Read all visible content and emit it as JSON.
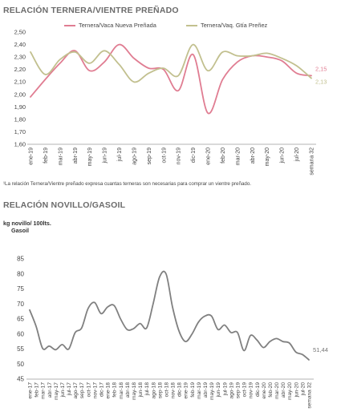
{
  "chart1_title": "RELACIÓN TERNERA/VIENTRE PREÑADO",
  "chart2_title": "RELACIÓN NOVILLO/GASOIL",
  "footnote": "¹La relación Ternera/Vientre preñado expresa cuantas terneras son necesarias para comprar un vientre preñado.",
  "chart2_ylabel_line1": "kg novillo/ 100lts.",
  "chart2_ylabel_line2": "Gasoil",
  "colors": {
    "series_pink": "#e07d92",
    "series_khaki": "#c2c08f",
    "series_grey": "#808080"
  },
  "chart_data": [
    {
      "type": "line",
      "title": "RELACIÓN TERNERA/VIENTRE PREÑADO",
      "categories": [
        "ene-19",
        "feb-19",
        "mar-19",
        "abr-19",
        "may-19",
        "jun-19",
        "jul-19",
        "ago-19",
        "sep-19",
        "oct-19",
        "nov-19",
        "dic-19",
        "ene-20",
        "feb-20",
        "mar-20",
        "abr-20",
        "may-20",
        "jun-20",
        "jul-20",
        "semana 32"
      ],
      "ylim": [
        1.6,
        2.5
      ],
      "yticks": [
        "1,60",
        "1,70",
        "1,80",
        "1,90",
        "2,00",
        "2,10",
        "2,20",
        "2,30",
        "2,40",
        "2,50"
      ],
      "legend_position": "top",
      "grid": false,
      "series": [
        {
          "name": "Ternera/Vaca Nueva Preñada",
          "color": "#e07d92",
          "values": [
            1.98,
            2.12,
            2.25,
            2.35,
            2.19,
            2.26,
            2.4,
            2.29,
            2.21,
            2.2,
            2.03,
            2.32,
            1.85,
            2.12,
            2.26,
            2.31,
            2.3,
            2.27,
            2.17,
            2.15
          ],
          "end_label": "2,15"
        },
        {
          "name": "Ternera/Vaq. Gtía Preñez",
          "color": "#c2c08f",
          "values": [
            2.34,
            2.16,
            2.28,
            2.34,
            2.25,
            2.35,
            2.24,
            2.1,
            2.17,
            2.21,
            2.15,
            2.4,
            2.19,
            2.34,
            2.31,
            2.31,
            2.33,
            2.29,
            2.23,
            2.13
          ],
          "end_label": "2,13"
        }
      ]
    },
    {
      "type": "line",
      "title": "RELACIÓN NOVILLO/GASOIL",
      "ylabel": "kg novillo/ 100lts. Gasoil",
      "categories": [
        "ene-17",
        "feb-17",
        "mar-17",
        "abr-17",
        "may-17",
        "jun-17",
        "jul-17",
        "ago-17",
        "sep-17",
        "oct-17",
        "nov-17",
        "dic-17",
        "ene-18",
        "feb-18",
        "mar-18",
        "abr-18",
        "may-18",
        "jun-18",
        "jul-18",
        "ago-18",
        "sep-18",
        "oct-18",
        "nov-18",
        "dic-18",
        "ene-19",
        "feb-19",
        "mar-19",
        "abr-19",
        "may-19",
        "jun-19",
        "jul-19",
        "ago-19",
        "sep-19",
        "oct-19",
        "nov-19",
        "dic-19",
        "ene-20",
        "feb-20",
        "mar-20",
        "abr-20",
        "may-20",
        "jun-20",
        "jul-20",
        "semana 32"
      ],
      "ylim": [
        45,
        85
      ],
      "yticks": [
        "45",
        "50",
        "55",
        "60",
        "65",
        "70",
        "75",
        "80",
        "85"
      ],
      "grid": false,
      "series": [
        {
          "color": "#808080",
          "values": [
            68,
            62.5,
            55.2,
            56,
            54.8,
            56.5,
            55,
            60.5,
            62,
            68.5,
            70.5,
            66.8,
            69,
            69.5,
            65,
            61.5,
            61.8,
            63.5,
            62,
            70,
            79,
            80,
            69,
            61,
            57.5,
            60,
            64,
            66,
            66,
            61.5,
            63,
            60.5,
            60.5,
            54.5,
            59.5,
            58,
            55.5,
            57.5,
            58.5,
            57.5,
            57,
            54,
            53.2,
            51.44
          ],
          "end_label": "51,44"
        }
      ]
    }
  ]
}
